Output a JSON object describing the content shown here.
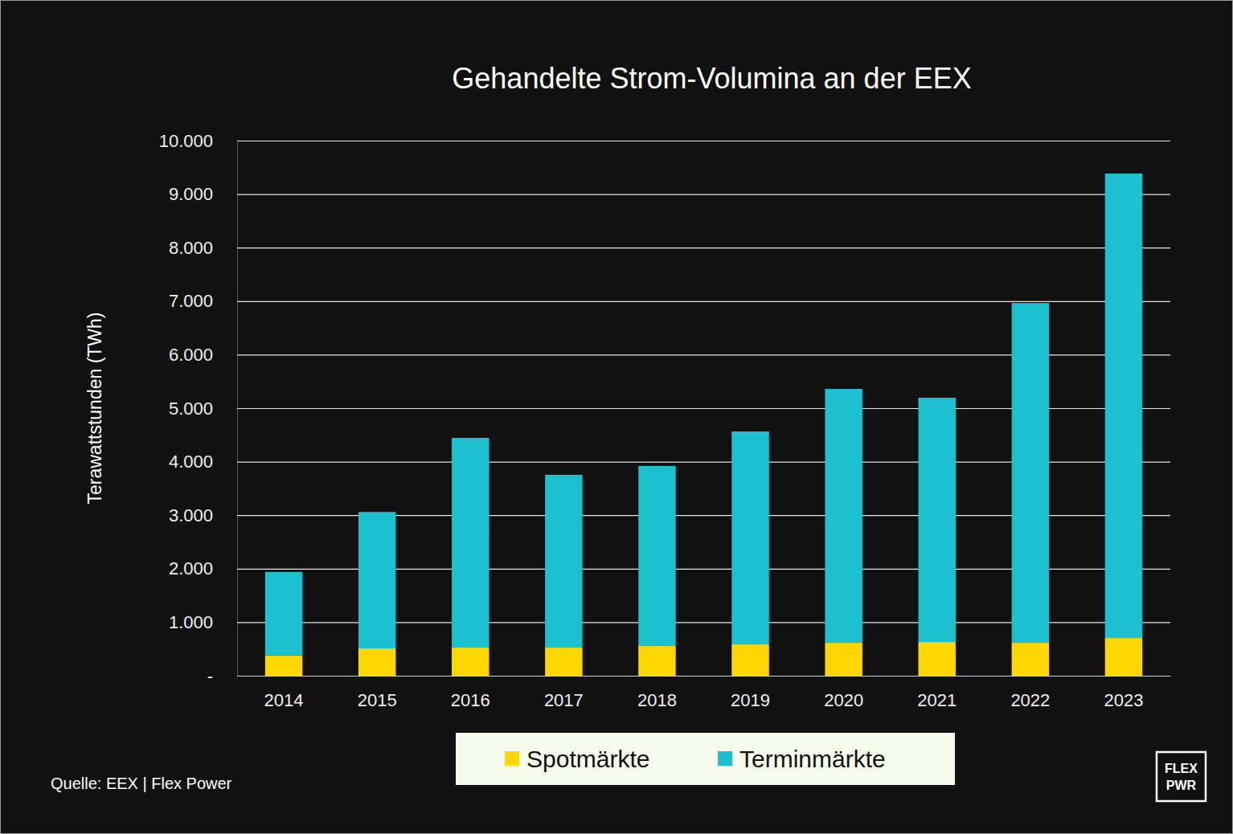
{
  "chart_data": {
    "type": "bar",
    "stacked": true,
    "title": "Gehandelte Strom-Volumina an der EEX",
    "y_label": "Terawattstunden (TWh)",
    "source": "Quelle: EEX | Flex Power",
    "annotations": [
      "FLEX",
      "PWR"
    ],
    "categories": [
      "2014",
      "2015",
      "2016",
      "2017",
      "2018",
      "2019",
      "2020",
      "2021",
      "2022",
      "2023"
    ],
    "series": [
      {
        "name": "Spotmärkte",
        "color": "#fed700",
        "values": [
          380,
          510,
          525,
          525,
          555,
          585,
          615,
          630,
          615,
          705
        ]
      },
      {
        "name": "Terminmärkte",
        "color": "#1cc0cf",
        "values": [
          1560,
          2550,
          3920,
          3230,
          3365,
          3980,
          4745,
          4565,
          6350,
          8680
        ]
      }
    ],
    "ylim": [
      0,
      10000
    ],
    "yticks": [
      {
        "value": 0,
        "label": "-"
      },
      {
        "value": 1000,
        "label": "1.000"
      },
      {
        "value": 2000,
        "label": "2.000"
      },
      {
        "value": 3000,
        "label": "3.000"
      },
      {
        "value": 4000,
        "label": "4.000"
      },
      {
        "value": 5000,
        "label": "5.000"
      },
      {
        "value": 6000,
        "label": "6.000"
      },
      {
        "value": 7000,
        "label": "7.000"
      },
      {
        "value": 8000,
        "label": "8.000"
      },
      {
        "value": 9000,
        "label": "9.000"
      },
      {
        "value": 10000,
        "label": "10.000"
      }
    ],
    "grid": true,
    "legend": "bottom"
  }
}
